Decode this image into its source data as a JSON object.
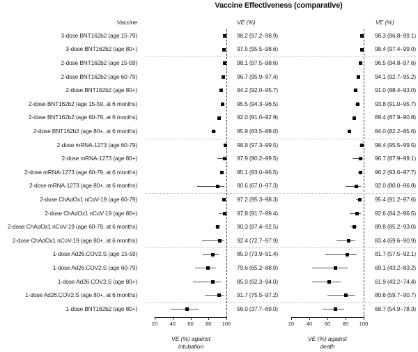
{
  "title": "Vaccine Effectiveness (comparative)",
  "headers": {
    "vaccine": "Vaccine",
    "ve_intubation": "VE (%)",
    "ve_death": "VE (%)"
  },
  "axis": {
    "ticks": [
      20,
      40,
      60,
      80,
      100
    ],
    "panel1_label_line1": "VE (%) against",
    "panel1_label_line2": "intubation",
    "panel2_label_line1": "VE (%) against",
    "panel2_label_line2": "death"
  },
  "colors": {
    "marker": "#0a0a0a",
    "ci_line": "#4a4a4a",
    "reference_line_dashed": "#383838",
    "group_separator_dotted": "#bdbdbd",
    "text": "#222222"
  },
  "chart_data": {
    "type": "scatter",
    "subtype": "forest-plot",
    "title": "Vaccine Effectiveness (comparative)",
    "xticks": [
      20,
      40,
      60,
      80,
      100
    ],
    "xlim": [
      20,
      100
    ],
    "reference_line": 100,
    "grid": false,
    "group_separators_after_row": [
      2,
      8,
      12,
      16,
      20
    ],
    "categories": [
      "3-dose BNT162b2 (age 15-79)",
      "3-dose BNT162b2 (age 80+)",
      "2-dose BNT162b2 (age 15-59)",
      "2-dose BNT162b2 (age 60-79)",
      "2-dose BNT162b2 (age 80+)",
      "2-dose BNT162b2 (age 15-59, at 6 months)",
      "2-dose BNT162b2 (age 60-79, at 6 months)",
      "2-dose BNT162b2 (age 80+, at 6 months)",
      "2-dose mRNA-1273 (age 60-79)",
      "2-dose mRNA-1273 (age 80+)",
      "2-dose mRNA-1273 (age 60-79, at 6 months)",
      "2-dose mRNA-1273 (age 80+, at 6 months)",
      "2-dose ChAdOx1 nCoV-19 (age 60-79)",
      "2-dose ChAdOx1 nCoV-19 (age 80+)",
      "2-dose ChAdOx1 nCoV-19 (age 60-79, at 6 months)",
      "2-dose ChAdOx1 nCoV-19 (age 80+, at 6 months)",
      "1-dose Ad26.COV2.S (age 15-59)",
      "1-dose Ad26.COV2.S (age 60-79)",
      "1-dose Ad26.COV2.S (age 80+)",
      "1-dose Ad26.COV2.S (age 80+, at 6 months)",
      "1-dose BNT162b2 (age 80+)"
    ],
    "series": [
      {
        "name": "VE (%) against intubation",
        "values": [
          98.2,
          97.5,
          98.1,
          96.7,
          94.2,
          95.5,
          92.0,
          85.9,
          98.9,
          97.9,
          95.1,
          90.6,
          97.2,
          97.8,
          90.3,
          92.4,
          85.0,
          79.6,
          85.0,
          91.7,
          56.0
        ],
        "ci_low": [
          97.2,
          95.5,
          97.5,
          95.9,
          92.0,
          94.3,
          91.0,
          83.5,
          97.3,
          90.2,
          93.0,
          67.0,
          95.3,
          91.7,
          87.4,
          72.7,
          73.9,
          65.2,
          62.3,
          75.5,
          37.7
        ],
        "ci_high": [
          98.9,
          98.6,
          98.6,
          97.4,
          95.7,
          96.5,
          92.9,
          88.0,
          99.5,
          99.5,
          96.5,
          97.3,
          98.3,
          99.4,
          92.5,
          97.9,
          91.4,
          88.0,
          94.0,
          97.2,
          69.0
        ],
        "value_texts": [
          "98.2 (97.2–98.9)",
          "97.5 (95.5–98.6)",
          "98.1 (97.5–98.6)",
          "96.7 (95.9–97.4)",
          "94.2 (92.0–95.7)",
          "95.5 (94.3–96.5)",
          "92.0 (91.0–92.9)",
          "85.9 (83.5–88.0)",
          "98.9 (97.3–99.5)",
          "97.9 (90.2–99.5)",
          "95.1 (93.0–96.5)",
          "90.6 (67.0–97.3)",
          "97.2 (95.3–98.3)",
          "97.8 (91.7–99.4)",
          "90.3 (87.4–92.5)",
          "92.4 (72.7–97.9)",
          "85.0 (73.9–91.4)",
          "79.6 (65.2–88.0)",
          "85.0 (62.3–94.0)",
          "91.7 (75.5–97.2)",
          "56.0 (37.7–69.0)"
        ]
      },
      {
        "name": "VE (%) against death",
        "values": [
          98.3,
          98.4,
          96.5,
          94.1,
          91.0,
          93.8,
          89.4,
          84.0,
          98.4,
          96.7,
          96.2,
          92.0,
          95.4,
          92.6,
          89.8,
          83.4,
          81.7,
          69.1,
          61.9,
          80.6,
          68.7
        ],
        "ci_low": [
          96.8,
          97.4,
          94.8,
          92.7,
          88.4,
          91.0,
          87.9,
          82.2,
          95.5,
          87.9,
          93.6,
          80.0,
          91.2,
          84.2,
          85.2,
          69.6,
          57.5,
          43.2,
          43.2,
          59.7,
          54.9
        ],
        "ci_high": [
          99.1,
          99.0,
          97.6,
          95.2,
          93.0,
          95.7,
          90.8,
          85.6,
          99.5,
          99.1,
          97.7,
          96.8,
          97.6,
          96.5,
          93.0,
          90.9,
          92.1,
          83.2,
          74.4,
          90.7,
          78.3
        ],
        "value_texts": [
          "98.3 (96.8–99.1)",
          "98.4 (97.4–99.0)",
          "96.5 (94.8–97.6)",
          "94.1 (92.7–95.2)",
          "91.0 (88.4–93.0)",
          "93.8 (91.0–95.7)",
          "89.4 (87.9–90.8)",
          "84.0 (82.2–85.6)",
          "98.4 (95.5–99.5)",
          "96.7 (87.9–99.1)",
          "96.2 (93.6–97.7)",
          "92.0 (80.0–96.8)",
          "95.4 (91.2–97.6)",
          "92.6 (84.2–96.5)",
          "89.8 (85.2–93.0)",
          "83.4 (69.6–90.9)",
          "81.7 (57.5–92.1)",
          "69.1 (43.2–83.2)",
          "61.9 (43.2–74.4)",
          "80.6 (59.7–90.7)",
          "68.7 (54.9–78.3)"
        ]
      }
    ]
  }
}
